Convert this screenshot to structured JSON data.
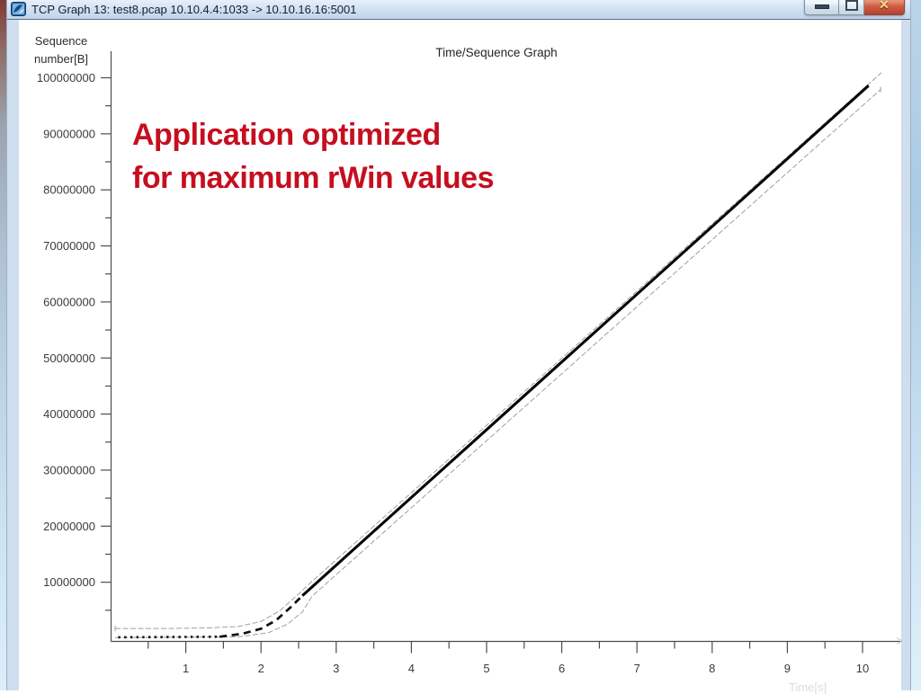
{
  "window": {
    "title": "TCP Graph 13: test8.pcap 10.10.4.4:1033 -> 10.10.16.16:5001",
    "buttons": [
      "minimize",
      "maximize",
      "close"
    ]
  },
  "annotation": {
    "line1": "Application optimized",
    "line2": "for maximum rWin values",
    "color": "#c50f1f"
  },
  "chart_data": {
    "type": "line",
    "title": "Time/Sequence Graph",
    "ylabel_lines": [
      "Sequence",
      "number[B]"
    ],
    "xlabel": "Time[s]",
    "xlim": [
      0,
      10.5
    ],
    "ylim": [
      0,
      105000000
    ],
    "grid": false,
    "legend": "none",
    "x_ticks": [
      1,
      2,
      3,
      4,
      5,
      6,
      7,
      8,
      9,
      10
    ],
    "x_minor_ticks": [
      0.5,
      1.5,
      2.5,
      3.5,
      4.5,
      5.5,
      6.5,
      7.5,
      8.5,
      9.5
    ],
    "y_ticks": [
      100000000,
      90000000,
      80000000,
      70000000,
      60000000,
      50000000,
      40000000,
      30000000,
      20000000,
      10000000
    ],
    "y_minor_ticks": [
      95000000,
      85000000,
      75000000,
      65000000,
      55000000,
      45000000,
      35000000,
      25000000,
      15000000,
      5000000
    ],
    "series": [
      {
        "name": "receive-window-line",
        "style": "thin-gray",
        "start_tick": true,
        "end_tick": false,
        "points": [
          [
            0.06,
            1750000
          ],
          [
            0.8,
            1750000
          ],
          [
            1.3,
            1850000
          ],
          [
            1.7,
            2100000
          ],
          [
            2.0,
            3000000
          ],
          [
            2.25,
            4900000
          ],
          [
            2.5,
            7900000
          ],
          [
            2.65,
            9800000
          ],
          [
            10.25,
            100900000
          ]
        ]
      },
      {
        "name": "ack-line",
        "style": "thin-gray",
        "start_tick": false,
        "end_tick": true,
        "points": [
          [
            0.06,
            120000
          ],
          [
            1.7,
            250000
          ],
          [
            2.1,
            1000000
          ],
          [
            2.35,
            2500000
          ],
          [
            2.55,
            4700000
          ],
          [
            2.68,
            7500000
          ],
          [
            10.24,
            97900000
          ]
        ]
      },
      {
        "name": "sequence-segments-flat",
        "style": "dotted-black",
        "points": [
          [
            0.1,
            180000
          ],
          [
            1.45,
            280000
          ]
        ]
      },
      {
        "name": "sequence-segments-rise",
        "style": "dashed-black",
        "points": [
          [
            1.45,
            280000
          ],
          [
            1.75,
            800000
          ],
          [
            2.0,
            1700000
          ],
          [
            2.2,
            3200000
          ],
          [
            2.4,
            5600000
          ],
          [
            2.55,
            7600000
          ]
        ]
      },
      {
        "name": "sequence-segments-main",
        "style": "thick-black",
        "points": [
          [
            2.55,
            7600000
          ],
          [
            10.08,
            98600000
          ]
        ]
      }
    ]
  }
}
